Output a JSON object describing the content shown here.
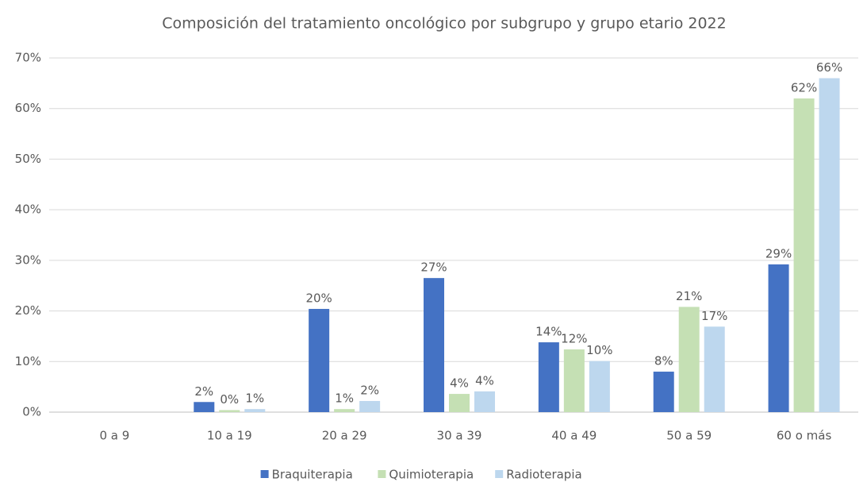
{
  "chart_data": {
    "type": "bar",
    "title": "Composición del tratamiento oncológico por subgrupo y grupo etario 2022",
    "categories": [
      "0 a 9",
      "10 a 19",
      "20 a 29",
      "30 a 39",
      "40 a 49",
      "50 a 59",
      "60 o más"
    ],
    "series": [
      {
        "name": "Braquiterapia",
        "color": "#4472c4",
        "values": [
          0,
          2,
          20.4,
          26.5,
          13.8,
          8,
          29.2
        ],
        "value_labels": [
          null,
          "2%",
          "20%",
          "27%",
          "14%",
          "8%",
          "29%"
        ]
      },
      {
        "name": "Quimioterapia",
        "color": "#c5e0b4",
        "values": [
          0,
          0.4,
          0.6,
          3.6,
          12.4,
          20.8,
          62
        ],
        "value_labels": [
          null,
          "0%",
          "1%",
          "4%",
          "12%",
          "21%",
          "62%"
        ]
      },
      {
        "name": "Radioterapia",
        "color": "#bdd7ee",
        "values": [
          0,
          0.6,
          2.2,
          4.1,
          10.1,
          16.9,
          66
        ],
        "value_labels": [
          null,
          "1%",
          "2%",
          "4%",
          "10%",
          "17%",
          "66%"
        ]
      }
    ],
    "ylim": [
      0,
      70
    ],
    "yticks": [
      {
        "value": 0,
        "label": "0%"
      },
      {
        "value": 10,
        "label": "10%"
      },
      {
        "value": 20,
        "label": "20%"
      },
      {
        "value": 30,
        "label": "30%"
      },
      {
        "value": 40,
        "label": "40%"
      },
      {
        "value": 50,
        "label": "50%"
      },
      {
        "value": 60,
        "label": "60%"
      },
      {
        "value": 70,
        "label": "70%"
      }
    ],
    "grid": true,
    "legend": "bottom"
  }
}
